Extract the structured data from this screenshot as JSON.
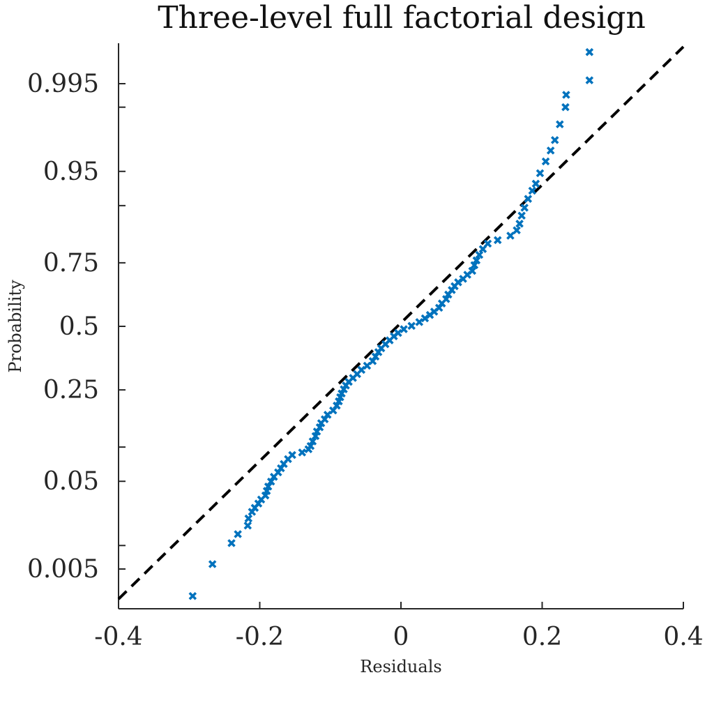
{
  "chart_data": {
    "type": "scatter",
    "title": "Three-level full factorial design",
    "xlabel": "Residuals",
    "ylabel": "Probability",
    "xlim": [
      -0.4,
      0.4
    ],
    "x_ticks": [
      -0.4,
      -0.2,
      0,
      0.2,
      0.4
    ],
    "x_tick_labels": [
      "-0.4",
      "-0.2",
      "0",
      "0.2",
      "0.4"
    ],
    "y_scale": "normal-probability",
    "y_ticks_labeled": [
      0.005,
      0.05,
      0.25,
      0.5,
      0.75,
      0.95,
      0.995
    ],
    "y_tick_labels": [
      "0.005",
      "0.05",
      "0.25",
      "0.5",
      "0.75",
      "0.95",
      "0.995"
    ],
    "y_ticks_minor": [
      0.01,
      0.1,
      0.9,
      0.99
    ],
    "grid": false,
    "marker": "x",
    "marker_color": "#0072BD",
    "reference_line": {
      "style": "dashed",
      "color": "#000000",
      "points": [
        [
          -0.4,
          0.0019
        ],
        [
          0.4,
          0.9985
        ]
      ]
    },
    "points": [
      [
        -0.295,
        0.0021
      ],
      [
        -0.267,
        0.0058
      ],
      [
        -0.24,
        0.0107
      ],
      [
        -0.231,
        0.0137
      ],
      [
        -0.217,
        0.0172
      ],
      [
        -0.216,
        0.0207
      ],
      [
        -0.211,
        0.0245
      ],
      [
        -0.207,
        0.027
      ],
      [
        -0.202,
        0.03
      ],
      [
        -0.198,
        0.033
      ],
      [
        -0.192,
        0.0363
      ],
      [
        -0.19,
        0.0403
      ],
      [
        -0.188,
        0.0445
      ],
      [
        -0.184,
        0.0497
      ],
      [
        -0.18,
        0.0551
      ],
      [
        -0.174,
        0.0606
      ],
      [
        -0.17,
        0.066
      ],
      [
        -0.166,
        0.072
      ],
      [
        -0.16,
        0.0794
      ],
      [
        -0.154,
        0.086
      ],
      [
        -0.14,
        0.0903
      ],
      [
        -0.131,
        0.096
      ],
      [
        -0.128,
        0.102
      ],
      [
        -0.125,
        0.111
      ],
      [
        -0.121,
        0.122
      ],
      [
        -0.119,
        0.132
      ],
      [
        -0.115,
        0.142
      ],
      [
        -0.113,
        0.152
      ],
      [
        -0.108,
        0.162
      ],
      [
        -0.104,
        0.174
      ],
      [
        -0.096,
        0.186
      ],
      [
        -0.091,
        0.2
      ],
      [
        -0.088,
        0.213
      ],
      [
        -0.086,
        0.226
      ],
      [
        -0.084,
        0.238
      ],
      [
        -0.081,
        0.252
      ],
      [
        -0.078,
        0.265
      ],
      [
        -0.074,
        0.278
      ],
      [
        -0.068,
        0.292
      ],
      [
        -0.062,
        0.306
      ],
      [
        -0.056,
        0.322
      ],
      [
        -0.048,
        0.338
      ],
      [
        -0.04,
        0.356
      ],
      [
        -0.036,
        0.374
      ],
      [
        -0.032,
        0.392
      ],
      [
        -0.028,
        0.408
      ],
      [
        -0.022,
        0.425
      ],
      [
        -0.016,
        0.441
      ],
      [
        -0.01,
        0.458
      ],
      [
        -0.004,
        0.472
      ],
      [
        0.004,
        0.488
      ],
      [
        0.015,
        0.502
      ],
      [
        0.026,
        0.518
      ],
      [
        0.034,
        0.534
      ],
      [
        0.041,
        0.548
      ],
      [
        0.047,
        0.562
      ],
      [
        0.054,
        0.578
      ],
      [
        0.058,
        0.596
      ],
      [
        0.064,
        0.614
      ],
      [
        0.067,
        0.632
      ],
      [
        0.072,
        0.65
      ],
      [
        0.076,
        0.665
      ],
      [
        0.081,
        0.68
      ],
      [
        0.088,
        0.693
      ],
      [
        0.094,
        0.708
      ],
      [
        0.101,
        0.722
      ],
      [
        0.104,
        0.742
      ],
      [
        0.107,
        0.758
      ],
      [
        0.111,
        0.776
      ],
      [
        0.116,
        0.794
      ],
      [
        0.123,
        0.81
      ],
      [
        0.137,
        0.82
      ],
      [
        0.155,
        0.832
      ],
      [
        0.164,
        0.846
      ],
      [
        0.168,
        0.862
      ],
      [
        0.171,
        0.88
      ],
      [
        0.175,
        0.896
      ],
      [
        0.18,
        0.912
      ],
      [
        0.186,
        0.925
      ],
      [
        0.191,
        0.935
      ],
      [
        0.197,
        0.948
      ],
      [
        0.205,
        0.96
      ],
      [
        0.212,
        0.969
      ],
      [
        0.218,
        0.976
      ],
      [
        0.225,
        0.984
      ],
      [
        0.233,
        0.99
      ],
      [
        0.234,
        0.993
      ],
      [
        0.267,
        0.9955
      ],
      [
        0.267,
        0.9982
      ]
    ]
  }
}
